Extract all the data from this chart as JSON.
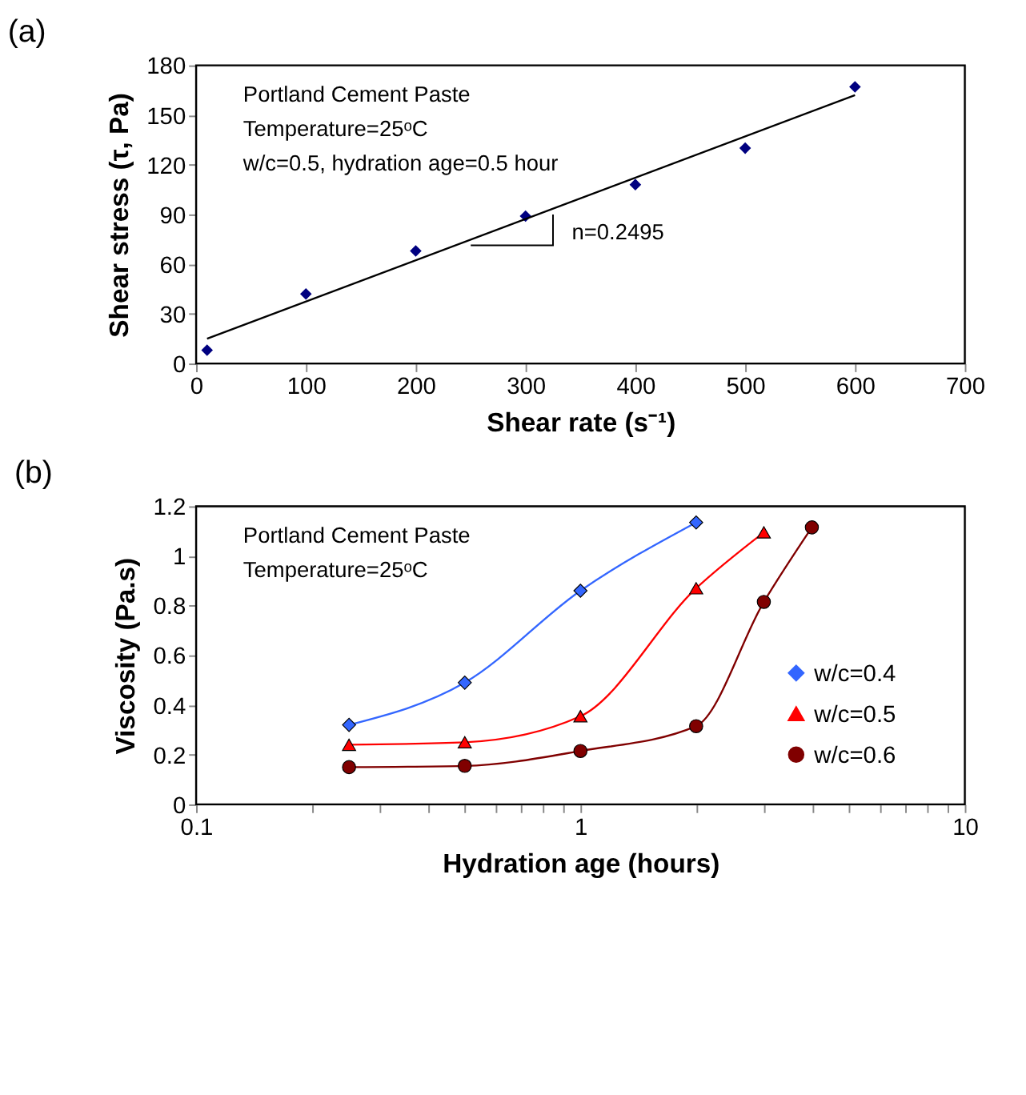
{
  "chart_data": [
    {
      "type": "scatter",
      "title": "(a)",
      "xlabel": "Shear rate (s⁻¹)",
      "ylabel": "Shear stress (τ, Pa)",
      "x": [
        10,
        100,
        200,
        300,
        400,
        500,
        600
      ],
      "series": [
        {
          "color": "#000080",
          "marker": "diamond",
          "values": [
            8,
            42,
            68,
            89,
            108,
            130,
            167
          ]
        },
        {
          "type": "line",
          "color": "#000000",
          "marker": "none",
          "x": [
            10,
            600
          ],
          "values": [
            15,
            162
          ]
        }
      ],
      "xlim": [
        0,
        700
      ],
      "xticks": [
        0,
        100,
        200,
        300,
        400,
        500,
        600,
        700
      ],
      "ylim": [
        0,
        180
      ],
      "yticks": [
        0,
        30,
        60,
        90,
        120,
        150,
        180
      ],
      "annotations": [
        "Portland Cement Paste",
        "Temperature=25ᵒC",
        "w/c=0.5, hydration age=0.5 hour",
        {
          "text": "n=0.2495",
          "x": 325,
          "y": 90
        }
      ],
      "grid": false,
      "legend": false
    },
    {
      "type": "line",
      "title": "(b)",
      "xlabel": "Hydration age (hours)",
      "ylabel": "Viscosity (Pa.s)",
      "log": "x",
      "series": [
        {
          "name": "w/c=0.4",
          "color": "#3366ff",
          "marker": "diamond",
          "x": [
            0.25,
            0.5,
            1,
            2
          ],
          "values": [
            0.32,
            0.49,
            0.86,
            1.135
          ]
        },
        {
          "name": "w/c=0.5",
          "color": "#ff0000",
          "marker": "triangle",
          "x": [
            0.25,
            0.5,
            1,
            2,
            3
          ],
          "values": [
            0.24,
            0.25,
            0.355,
            0.87,
            1.095
          ]
        },
        {
          "name": "w/c=0.6",
          "color": "#800000",
          "marker": "circle",
          "x": [
            0.25,
            0.5,
            1,
            2,
            3,
            4
          ],
          "values": [
            0.15,
            0.155,
            0.215,
            0.315,
            0.815,
            1.115
          ]
        }
      ],
      "xlim": [
        0.1,
        10
      ],
      "xticks": [
        0.1,
        {
          "value": 0.2,
          "label": null
        },
        {
          "value": 0.3,
          "label": null
        },
        {
          "value": 0.4,
          "label": null
        },
        {
          "value": 0.5,
          "label": null
        },
        {
          "value": 0.6,
          "label": null
        },
        {
          "value": 0.7,
          "label": null
        },
        {
          "value": 0.8,
          "label": null
        },
        {
          "value": 0.9,
          "label": null
        },
        1,
        {
          "value": 2,
          "label": null
        },
        {
          "value": 3,
          "label": null
        },
        {
          "value": 4,
          "label": null
        },
        {
          "value": 5,
          "label": null
        },
        {
          "value": 6,
          "label": null
        },
        {
          "value": 7,
          "label": null
        },
        {
          "value": 8,
          "label": null
        },
        {
          "value": 9,
          "label": null
        },
        10
      ],
      "ylim": [
        0,
        1.2
      ],
      "yticks": [
        0,
        0.2,
        0.4,
        0.6,
        0.8,
        1,
        1.2
      ],
      "annotations": [
        "Portland Cement Paste",
        "Temperature=25ᵒC"
      ],
      "grid": false,
      "legend": "right"
    }
  ]
}
